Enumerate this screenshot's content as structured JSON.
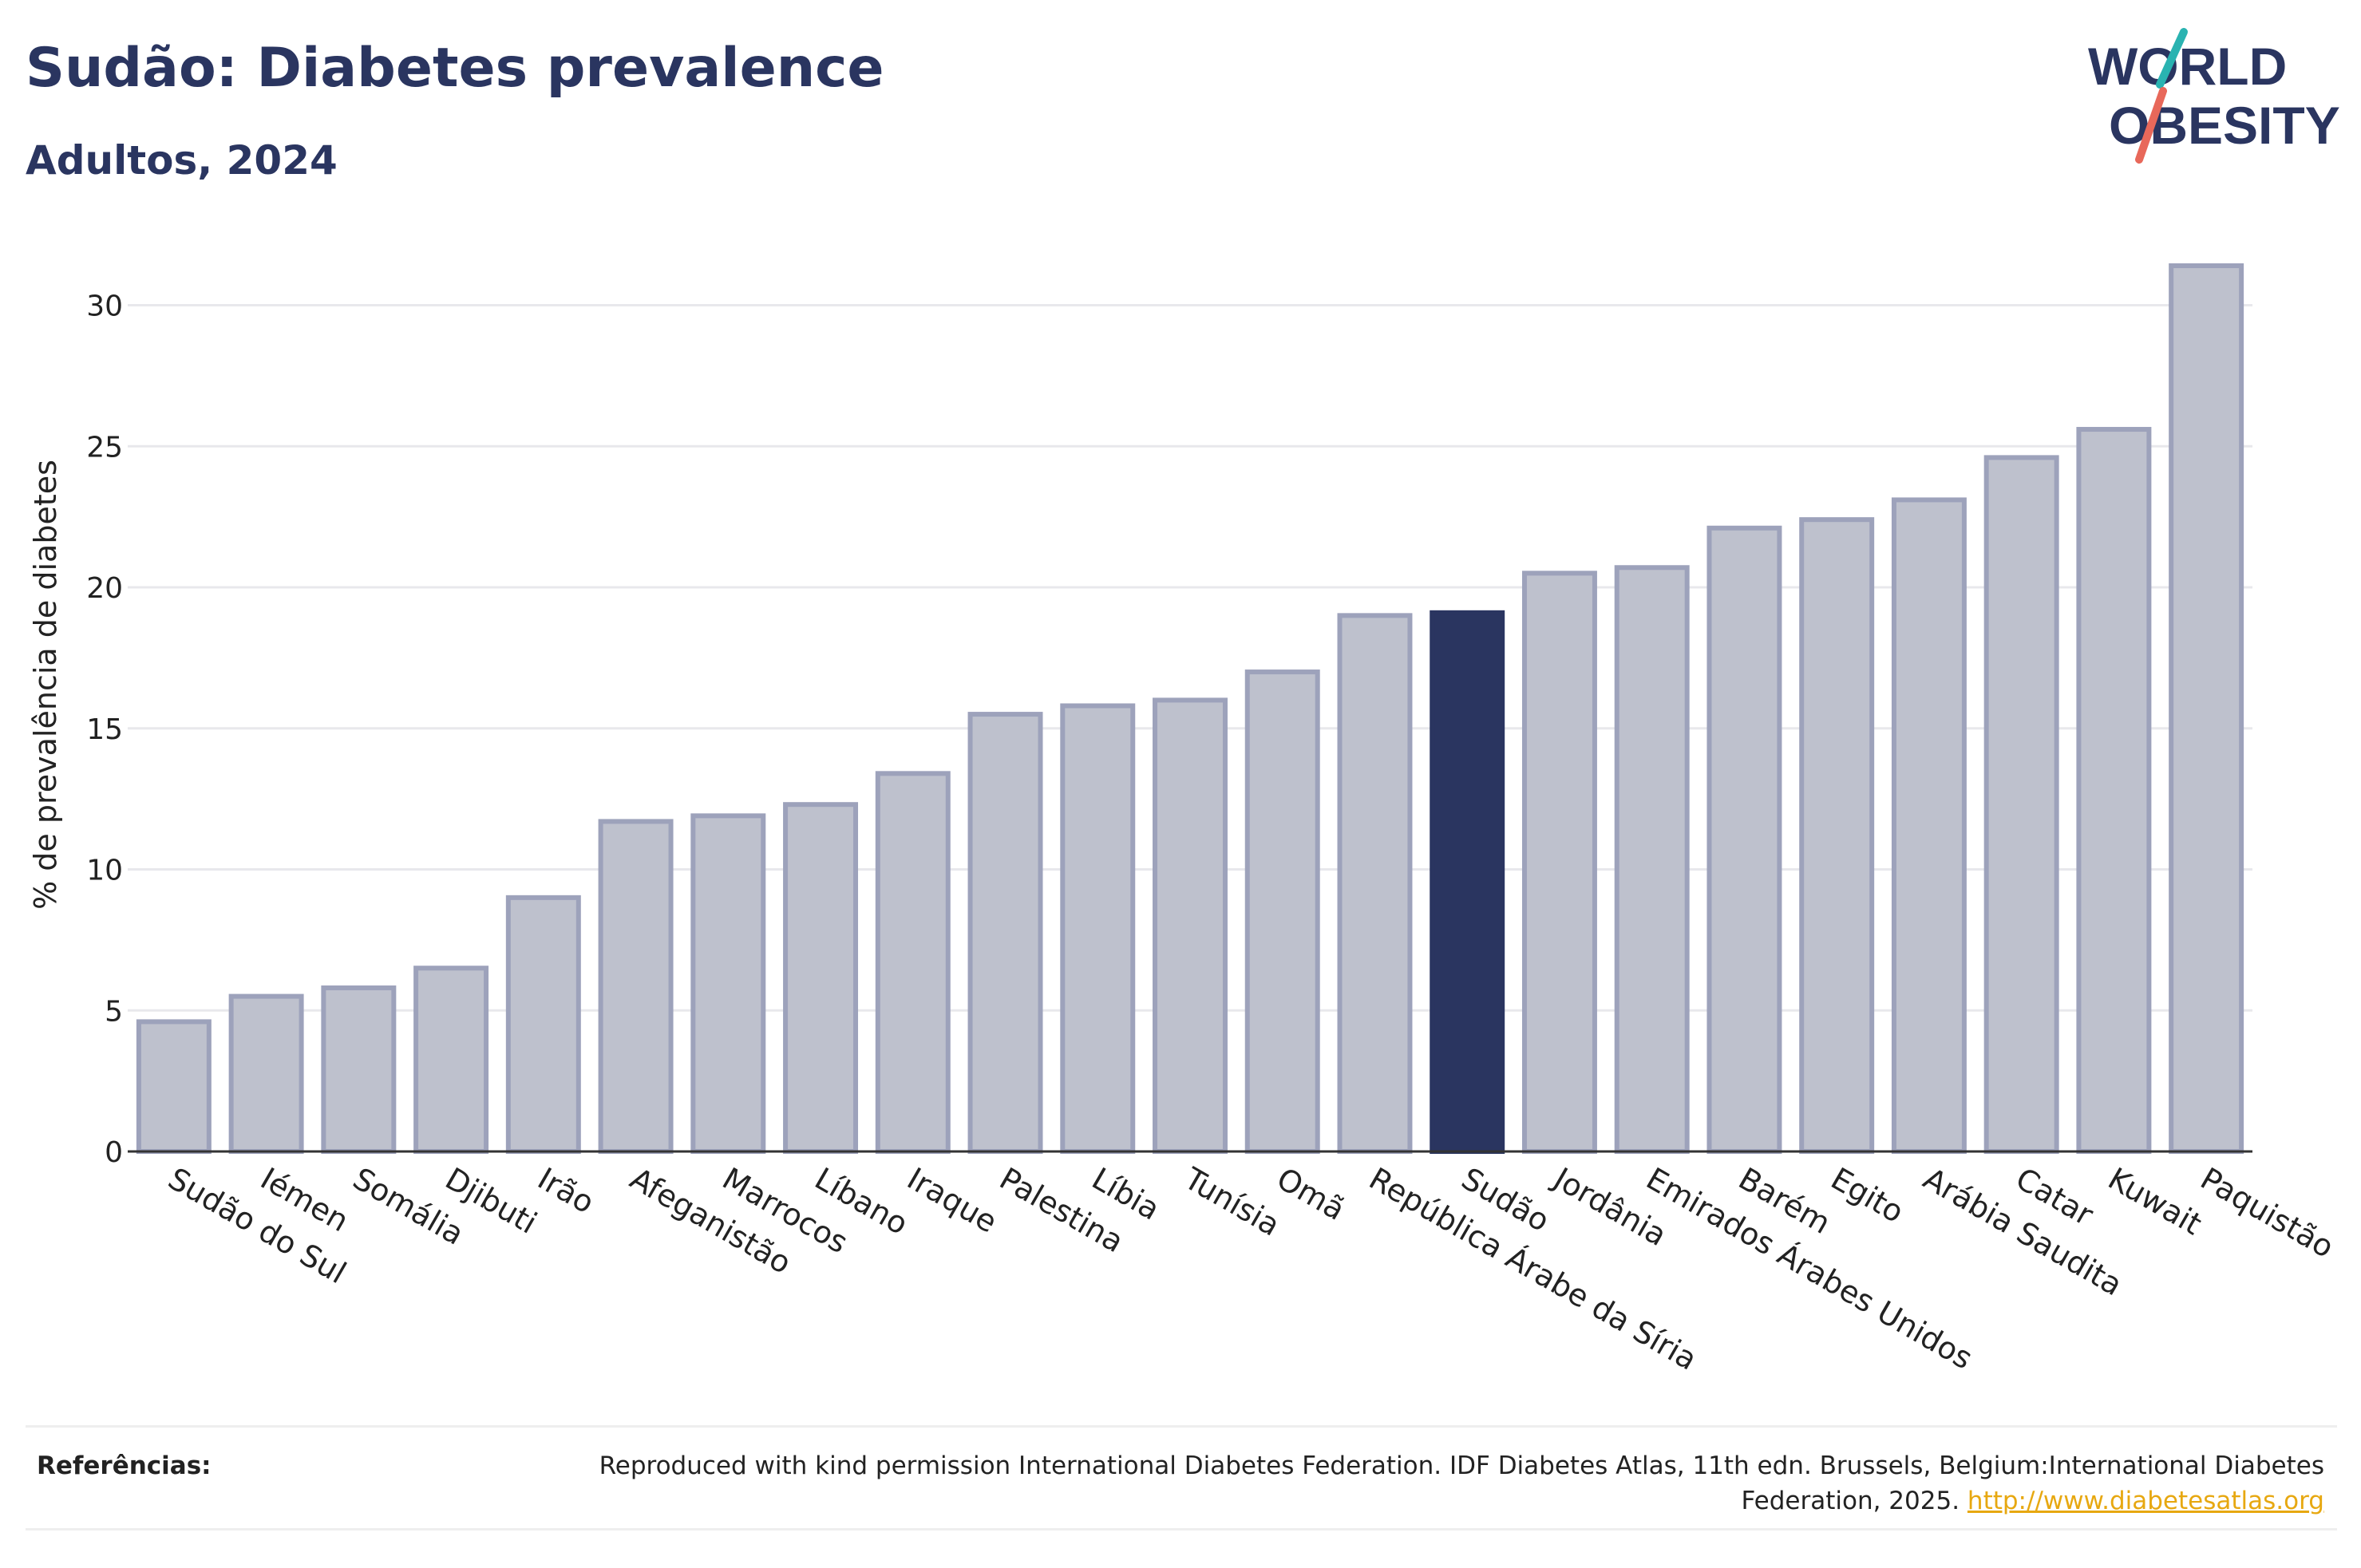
{
  "header": {
    "title": "Sudão: Diabetes prevalence",
    "subtitle": "Adultos, 2024"
  },
  "logo": {
    "line1": "WORLD",
    "line2": "OBESITY",
    "slash_colors": [
      "#2ab3b1",
      "#e8685a"
    ]
  },
  "colors": {
    "bar_fill": "#bec1cd",
    "bar_stroke": "#9da2bb",
    "highlight": "#2a3560",
    "grid": "#e8e8ec",
    "axis": "#333333",
    "text": "#2a3560",
    "link": "#e7a811"
  },
  "chart_data": {
    "type": "bar",
    "ylabel": "% de prevalência de diabetes",
    "ylim": [
      0,
      33
    ],
    "yticks": [
      0,
      5,
      10,
      15,
      20,
      25,
      30
    ],
    "grid": true,
    "highlight_category": "Sudão",
    "categories": [
      "Sudão do Sul",
      "Iémen",
      "Somália",
      "Djibuti",
      "Irão",
      "Afeganistão",
      "Marrocos",
      "Líbano",
      "Iraque",
      "Palestina",
      "Líbia",
      "Tunísia",
      "Omã",
      "República Árabe da Síria",
      "Sudão",
      "Jordânia",
      "Emirados Árabes Unidos",
      "Barém",
      "Egito",
      "Arábia Saudita",
      "Catar",
      "Kuwait",
      "Paquistão"
    ],
    "values": [
      4.6,
      5.5,
      5.8,
      6.5,
      9.0,
      11.7,
      11.9,
      12.3,
      13.4,
      15.5,
      15.8,
      16.0,
      17.0,
      19.0,
      19.1,
      20.5,
      20.7,
      22.1,
      22.4,
      23.1,
      24.6,
      25.6,
      31.4
    ]
  },
  "footer": {
    "references_label": "Referências:",
    "reference_text": "Reproduced with kind permission International Diabetes Federation. IDF Diabetes Atlas, 11th edn. Brussels, Belgium:International Diabetes Federation, 2025.",
    "reference_link": "http://www.diabetesatlas.org"
  }
}
